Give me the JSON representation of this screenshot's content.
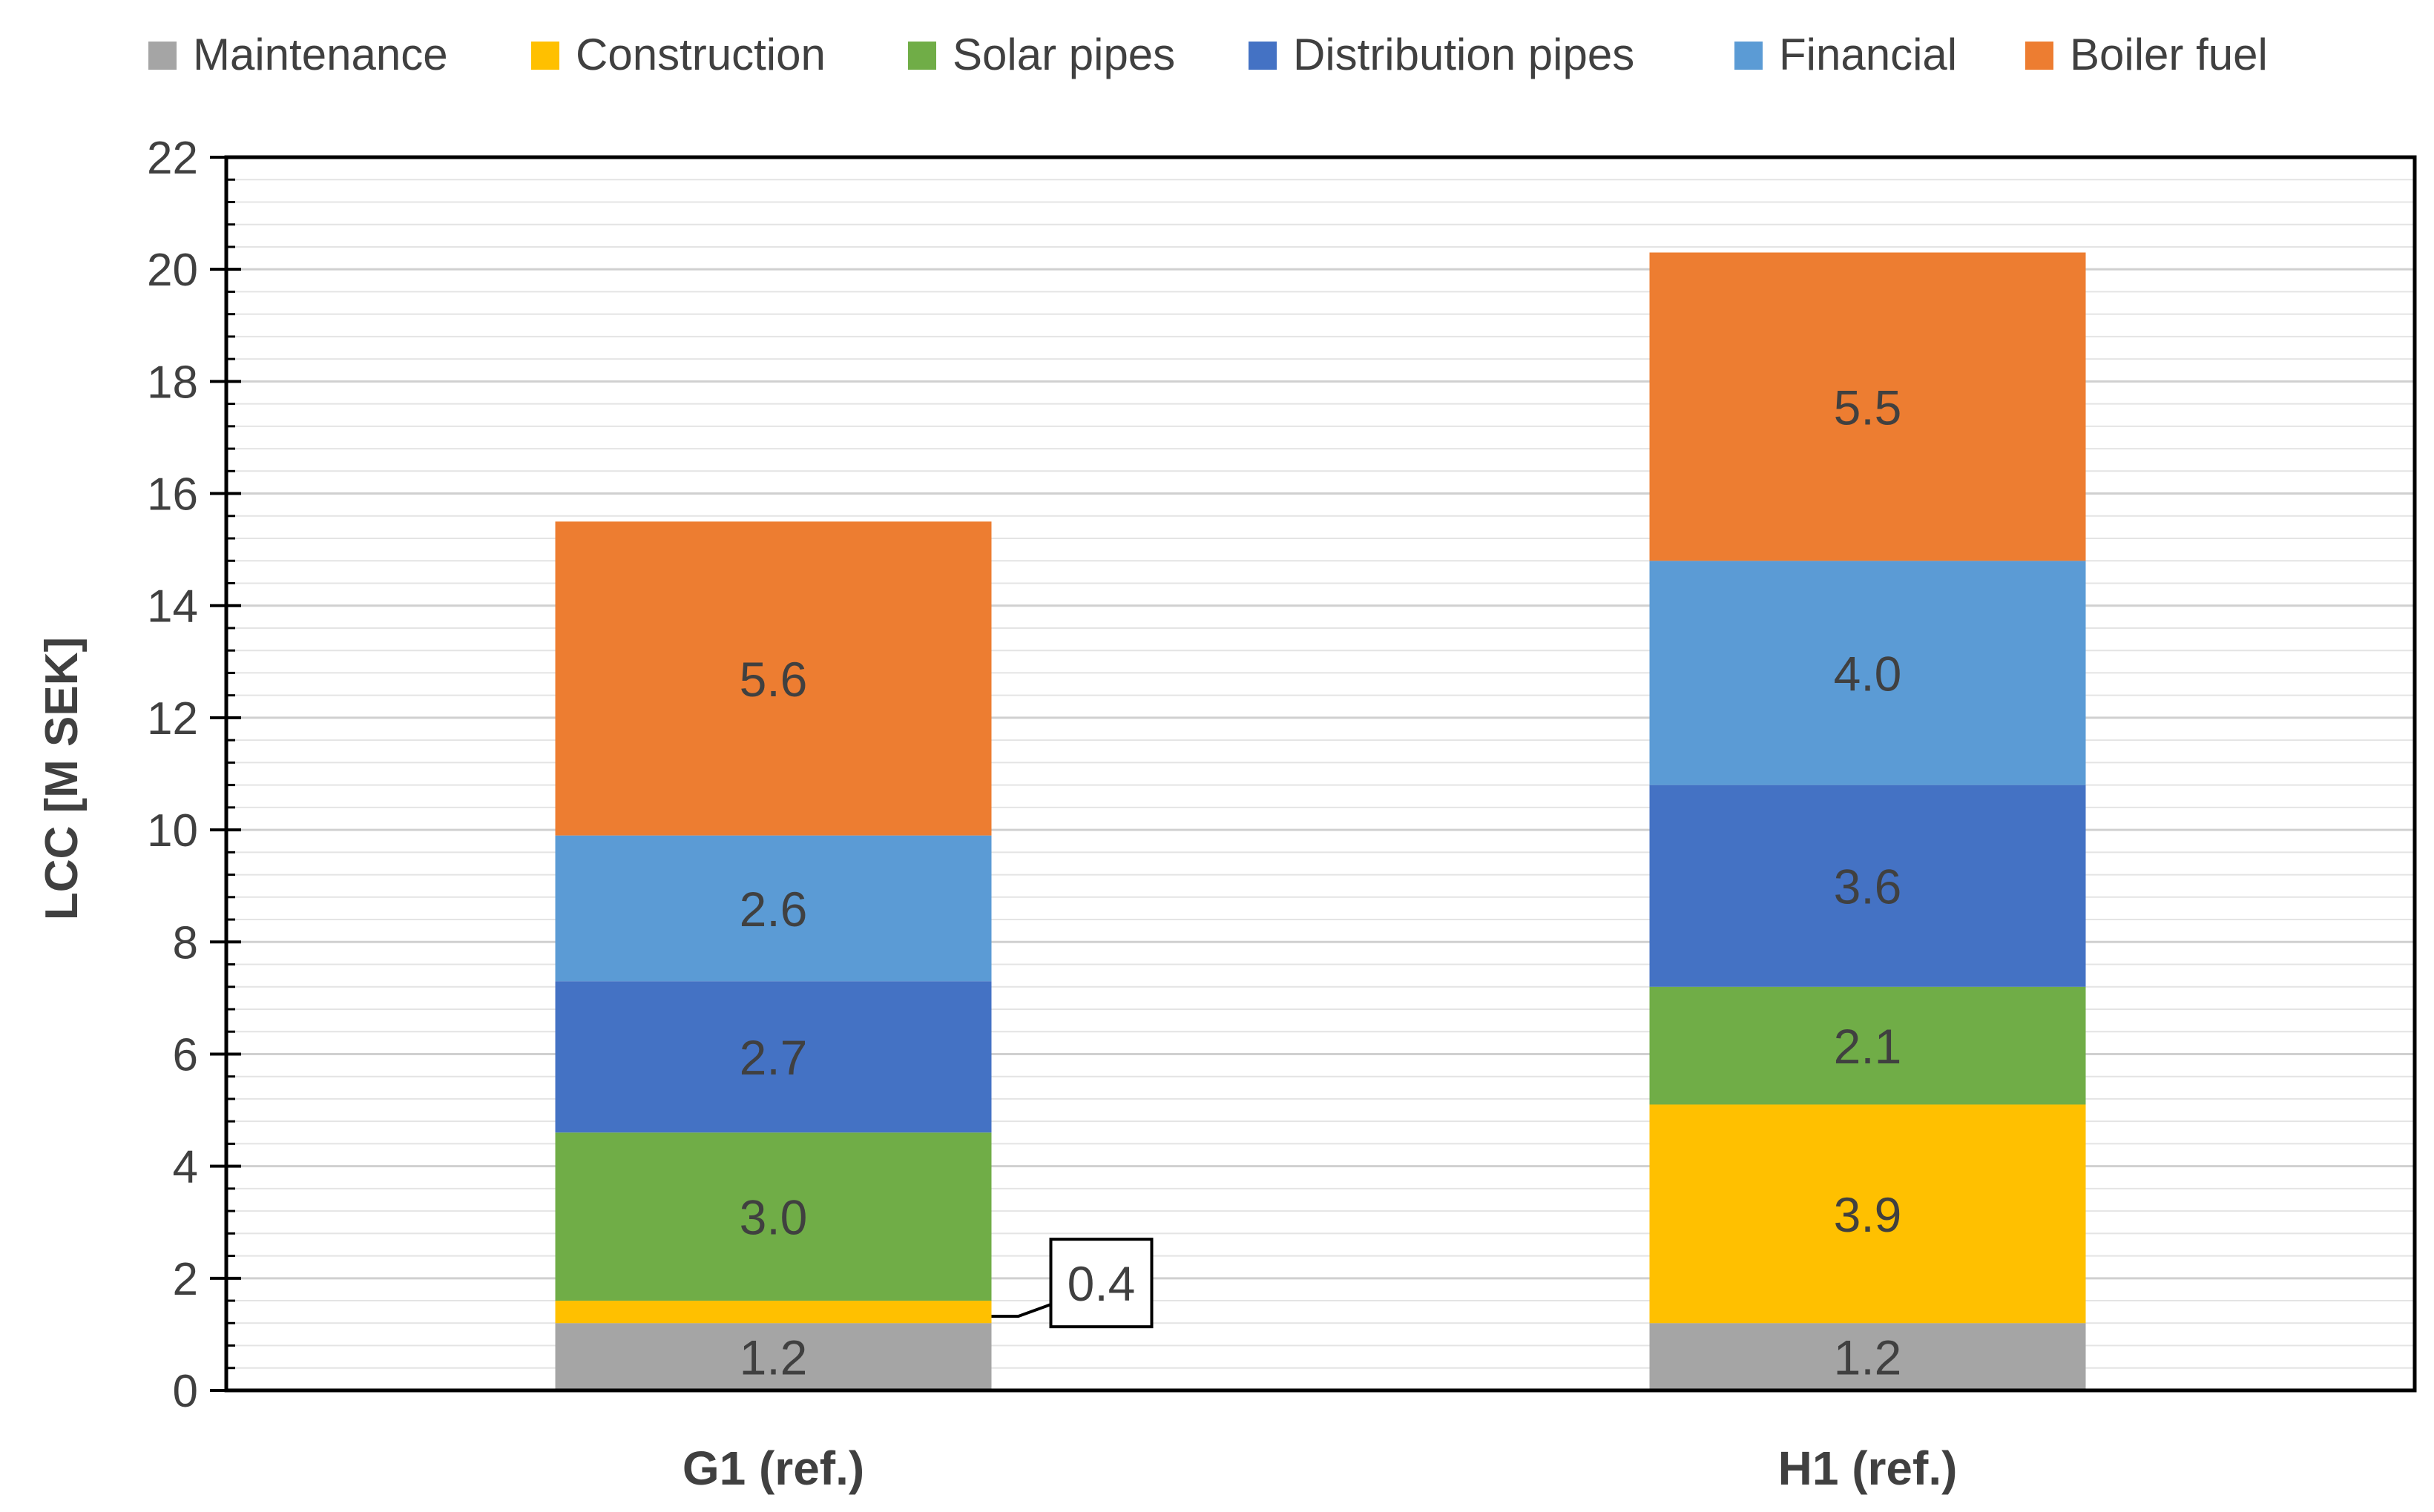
{
  "chart_data": {
    "type": "bar",
    "stacked": true,
    "title": "",
    "xlabel": "",
    "ylabel": "LCC [M SEK]",
    "ylim": [
      0,
      22
    ],
    "ytick_step": 2,
    "minor_tick_step": 0.4,
    "grid": true,
    "legend_position": "top",
    "categories": [
      "G1 (ref.)",
      "H1 (ref.)"
    ],
    "series": [
      {
        "name": "Maintenance",
        "color": "#a5a5a5",
        "values": [
          1.2,
          1.2
        ],
        "labels": [
          "1.2",
          "1.2"
        ]
      },
      {
        "name": "Construction",
        "color": "#ffc000",
        "values": [
          0.4,
          3.9
        ],
        "labels": [
          "0.4",
          "3.9"
        ]
      },
      {
        "name": "Solar pipes",
        "color": "#70ad47",
        "values": [
          3.0,
          2.1
        ],
        "labels": [
          "3.0",
          "2.1"
        ]
      },
      {
        "name": "Distribution pipes",
        "color": "#4472c4",
        "values": [
          2.7,
          3.6
        ],
        "labels": [
          "2.7",
          "3.6"
        ]
      },
      {
        "name": "Financial",
        "color": "#5b9bd5",
        "values": [
          2.6,
          4.0
        ],
        "labels": [
          "2.6",
          "4.0"
        ]
      },
      {
        "name": "Boiler fuel",
        "color": "#ed7d31",
        "values": [
          5.6,
          5.5
        ],
        "labels": [
          "5.6",
          "5.5"
        ]
      }
    ]
  }
}
